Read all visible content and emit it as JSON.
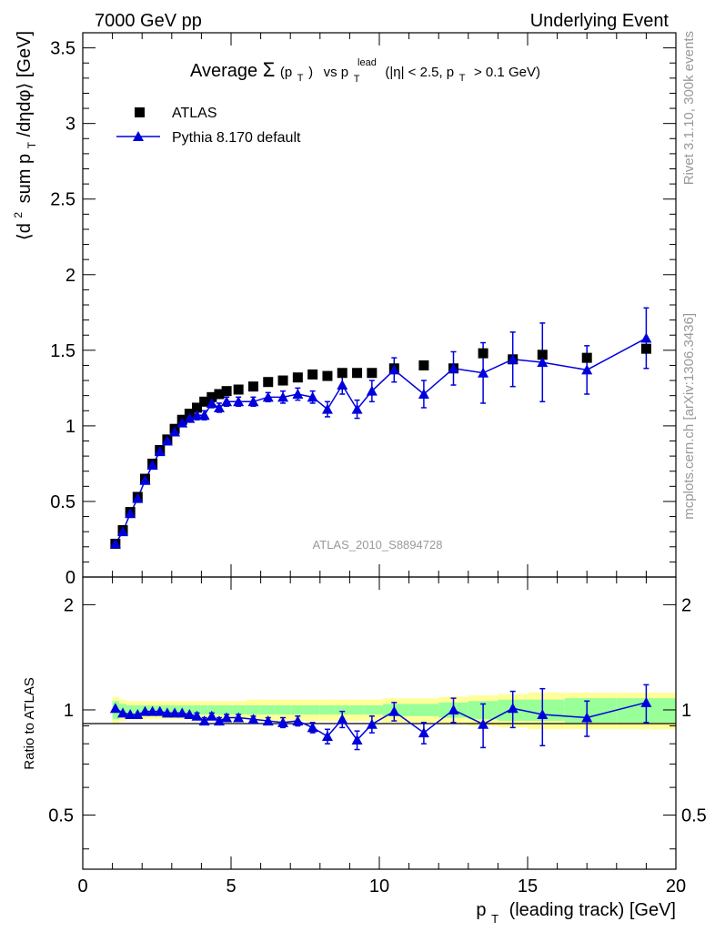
{
  "header": {
    "left": "7000 GeV pp",
    "right": "Underlying Event"
  },
  "side_text": {
    "top": "Rivet 3.1.10,  300k events",
    "bottom": "mcplots.cern.ch [arXiv:1306.3436]"
  },
  "chart_data": {
    "type": "scatter",
    "title": {
      "word": "Average",
      "sigma": "Σ",
      "sigma_arg_open": "(p",
      "sigma_arg_sub": "T",
      "sigma_arg_close": ")",
      "vs": "vs p",
      "vs_sub": "T",
      "vs_sup": "lead",
      "cut_open": "(|η| < 2.5, p",
      "cut_sub": "T",
      "cut_close": "> 0.1 GeV)"
    },
    "ylabel": {
      "open": "⟨d",
      "sup2": "2",
      "mid": "sum p",
      "sub": "T",
      "close": "/dηdφ⟩ [GeV]"
    },
    "xlabel": {
      "p": "p",
      "sub": "T",
      "rest": "(leading track) [GeV]"
    },
    "ratio_ylabel": "Ratio to ATLAS",
    "watermark": "ATLAS_2010_S8894728",
    "xlim": [
      0,
      20
    ],
    "ylim": [
      0,
      3.6
    ],
    "ratio_ylim": [
      0.35,
      2.4
    ],
    "x_ticks": [
      "0",
      "5",
      "10",
      "15",
      "20"
    ],
    "y_ticks": [
      "0",
      "0.5",
      "1",
      "1.5",
      "2",
      "2.5",
      "3",
      "3.5"
    ],
    "ratio_ticks_left": [
      "0.5",
      "1",
      "2"
    ],
    "ratio_ticks_right": [
      "0.5",
      "1",
      "2"
    ],
    "legend": {
      "atlas": "ATLAS",
      "pythia": "Pythia 8.170 default",
      "position": "top-left"
    },
    "colors": {
      "atlas": "#000000",
      "pythia": "#0000dd",
      "band_inner": "#99ff99",
      "band_outer": "#ffff99"
    },
    "series": [
      {
        "name": "ATLAS",
        "x": [
          1.1,
          1.35,
          1.6,
          1.85,
          2.1,
          2.35,
          2.6,
          2.85,
          3.1,
          3.35,
          3.6,
          3.85,
          4.1,
          4.35,
          4.6,
          4.85,
          5.25,
          5.75,
          6.25,
          6.75,
          7.25,
          7.75,
          8.25,
          8.75,
          9.25,
          9.75,
          10.5,
          11.5,
          12.5,
          13.5,
          14.5,
          15.5,
          17.0,
          19.0
        ],
        "y": [
          0.22,
          0.31,
          0.43,
          0.53,
          0.65,
          0.75,
          0.84,
          0.91,
          0.98,
          1.04,
          1.08,
          1.12,
          1.16,
          1.19,
          1.21,
          1.23,
          1.24,
          1.26,
          1.29,
          1.3,
          1.32,
          1.34,
          1.33,
          1.35,
          1.35,
          1.35,
          1.38,
          1.4,
          1.38,
          1.48,
          1.44,
          1.47,
          1.45,
          1.51
        ],
        "band_inner": [
          0.06,
          0.04,
          0.03,
          0.03,
          0.03,
          0.03,
          0.03,
          0.03,
          0.03,
          0.03,
          0.03,
          0.03,
          0.03,
          0.03,
          0.03,
          0.03,
          0.03,
          0.03,
          0.03,
          0.03,
          0.03,
          0.03,
          0.03,
          0.03,
          0.03,
          0.03,
          0.04,
          0.04,
          0.05,
          0.06,
          0.07,
          0.07,
          0.08,
          0.08
        ],
        "band_outer": [
          0.09,
          0.07,
          0.06,
          0.06,
          0.06,
          0.06,
          0.06,
          0.06,
          0.06,
          0.06,
          0.06,
          0.06,
          0.06,
          0.06,
          0.06,
          0.06,
          0.06,
          0.07,
          0.07,
          0.07,
          0.07,
          0.07,
          0.07,
          0.07,
          0.07,
          0.07,
          0.08,
          0.08,
          0.09,
          0.1,
          0.11,
          0.12,
          0.12,
          0.12
        ]
      },
      {
        "name": "Pythia 8.170 default",
        "x": [
          1.1,
          1.35,
          1.6,
          1.85,
          2.1,
          2.35,
          2.6,
          2.85,
          3.1,
          3.35,
          3.6,
          3.85,
          4.1,
          4.35,
          4.6,
          4.85,
          5.25,
          5.75,
          6.25,
          6.75,
          7.25,
          7.75,
          8.25,
          8.75,
          9.25,
          9.75,
          10.5,
          11.5,
          12.5,
          13.5,
          14.5,
          15.5,
          17.0,
          19.0
        ],
        "y": [
          0.22,
          0.3,
          0.42,
          0.52,
          0.64,
          0.74,
          0.83,
          0.9,
          0.96,
          1.02,
          1.05,
          1.07,
          1.07,
          1.15,
          1.12,
          1.16,
          1.16,
          1.16,
          1.19,
          1.19,
          1.21,
          1.19,
          1.11,
          1.27,
          1.11,
          1.23,
          1.37,
          1.21,
          1.38,
          1.35,
          1.44,
          1.42,
          1.37,
          1.58
        ],
        "yerr": [
          0.01,
          0.01,
          0.01,
          0.01,
          0.01,
          0.01,
          0.01,
          0.02,
          0.02,
          0.02,
          0.02,
          0.03,
          0.03,
          0.03,
          0.03,
          0.03,
          0.03,
          0.03,
          0.03,
          0.04,
          0.04,
          0.04,
          0.05,
          0.06,
          0.06,
          0.07,
          0.08,
          0.09,
          0.11,
          0.2,
          0.18,
          0.26,
          0.16,
          0.2
        ],
        "ratio": [
          1.01,
          0.98,
          0.97,
          0.97,
          0.99,
          0.99,
          0.99,
          0.98,
          0.98,
          0.98,
          0.97,
          0.96,
          0.93,
          0.96,
          0.93,
          0.95,
          0.95,
          0.94,
          0.93,
          0.92,
          0.93,
          0.89,
          0.84,
          0.94,
          0.82,
          0.91,
          0.99,
          0.86,
          1.0,
          0.91,
          1.01,
          0.97,
          0.95,
          1.05
        ],
        "ratio_err": [
          0.01,
          0.01,
          0.01,
          0.01,
          0.01,
          0.01,
          0.01,
          0.01,
          0.01,
          0.01,
          0.01,
          0.02,
          0.02,
          0.02,
          0.02,
          0.02,
          0.02,
          0.02,
          0.02,
          0.03,
          0.03,
          0.03,
          0.04,
          0.05,
          0.05,
          0.05,
          0.06,
          0.06,
          0.08,
          0.13,
          0.12,
          0.18,
          0.11,
          0.13
        ]
      }
    ]
  }
}
